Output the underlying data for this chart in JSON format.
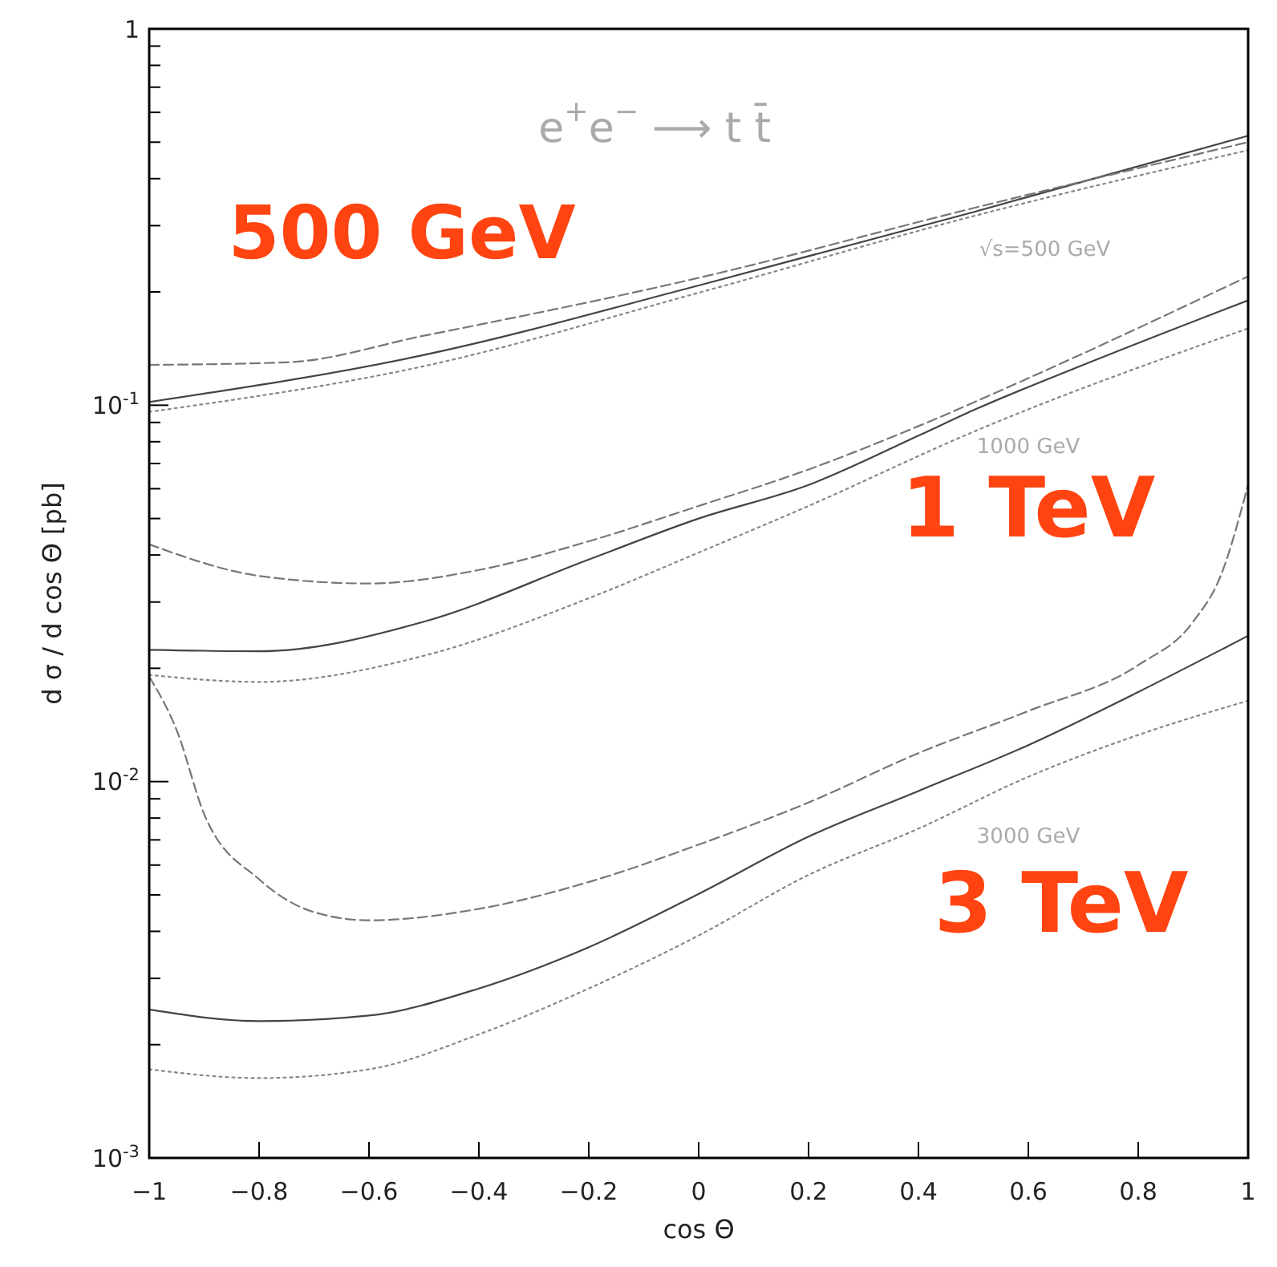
{
  "chart_data": {
    "type": "line",
    "xlabel": "cos Θ",
    "ylabel": "d σ / d cos Θ [pb]",
    "log": "y",
    "xlim": [
      -1,
      1
    ],
    "ylim": [
      0.001,
      1
    ],
    "xticks": [
      {
        "value": -1,
        "label": "−1"
      },
      {
        "value": -0.8,
        "label": "−0.8"
      },
      {
        "value": -0.6,
        "label": "−0.6"
      },
      {
        "value": -0.4,
        "label": "−0.4"
      },
      {
        "value": -0.2,
        "label": "−0.2"
      },
      0,
      0.2,
      0.4,
      0.6,
      0.8,
      1
    ],
    "yticks": [
      {
        "value": 0.001,
        "label": "10$^{-3}$"
      },
      {
        "value": 0.002,
        "label": null
      },
      {
        "value": 0.003,
        "label": null
      },
      {
        "value": 0.004,
        "label": null
      },
      {
        "value": 0.005,
        "label": null
      },
      {
        "value": 0.006,
        "label": null
      },
      {
        "value": 0.007,
        "label": null
      },
      {
        "value": 0.008,
        "label": null
      },
      {
        "value": 0.009,
        "label": null
      },
      {
        "value": 0.01,
        "label": "10$^{-2}$"
      },
      {
        "value": 0.02,
        "label": null
      },
      {
        "value": 0.03,
        "label": null
      },
      {
        "value": 0.04,
        "label": null
      },
      {
        "value": 0.05,
        "label": null
      },
      {
        "value": 0.06,
        "label": null
      },
      {
        "value": 0.07,
        "label": null
      },
      {
        "value": 0.08,
        "label": null
      },
      {
        "value": 0.09,
        "label": null
      },
      {
        "value": 0.1,
        "label": "10$^{-1}$"
      },
      {
        "value": 0.2,
        "label": null
      },
      {
        "value": 0.3,
        "label": null
      },
      {
        "value": 0.4,
        "label": null
      },
      {
        "value": 0.5,
        "label": null
      },
      {
        "value": 0.6,
        "label": null
      },
      {
        "value": 0.7,
        "label": null
      },
      {
        "value": 0.8,
        "label": null
      },
      {
        "value": 0.9,
        "label": null
      },
      1
    ],
    "grid": false,
    "marker": "none",
    "series": [
      {
        "color": "#444444",
        "line_style": "solid",
        "x": [
          -1,
          -0.5,
          0,
          0.5,
          1
        ],
        "values": [
          0.102,
          0.136,
          0.208,
          0.326,
          0.52
        ]
      },
      {
        "color": "#777777",
        "line_style": "dashed",
        "x": [
          -1,
          -0.75,
          -0.5,
          0,
          0.5,
          1
        ],
        "values": [
          0.128,
          0.13,
          0.153,
          0.218,
          0.334,
          0.5
        ]
      },
      {
        "color": "#888888",
        "line_style": "dotted",
        "x": [
          -1,
          -0.5,
          0,
          0.5,
          1
        ],
        "values": [
          0.096,
          0.127,
          0.199,
          0.318,
          0.476
        ]
      },
      {
        "color": "#444444",
        "line_style": "solid",
        "x": [
          -1,
          -0.8,
          -0.5,
          -0.2,
          0,
          0.2,
          0.4,
          0.5,
          0.7,
          1
        ],
        "values": [
          0.0224,
          0.0222,
          0.0266,
          0.0389,
          0.05,
          0.0614,
          0.083,
          0.097,
          0.128,
          0.19
        ]
      },
      {
        "color": "#777777",
        "line_style": "dashed",
        "x": [
          -1,
          -0.8,
          -0.6,
          -0.4,
          -0.2,
          0,
          0.2,
          0.4,
          0.6,
          1
        ],
        "values": [
          0.0427,
          0.0352,
          0.0336,
          0.0365,
          0.0435,
          0.054,
          0.0675,
          0.088,
          0.118,
          0.22
        ]
      },
      {
        "color": "#888888",
        "line_style": "dotted",
        "x": [
          -1,
          -0.8,
          -0.5,
          -0.2,
          0,
          0.2,
          0.5,
          1
        ],
        "values": [
          0.0192,
          0.0184,
          0.0216,
          0.0307,
          0.0406,
          0.054,
          0.085,
          0.16
        ]
      },
      {
        "color": "#444444",
        "line_style": "solid",
        "x": [
          -1,
          -0.8,
          -0.6,
          -0.4,
          -0.2,
          0,
          0.2,
          0.4,
          0.6,
          0.8,
          1
        ],
        "values": [
          0.00248,
          0.00231,
          0.00239,
          0.00282,
          0.00363,
          0.00503,
          0.00714,
          0.00944,
          0.0125,
          0.0173,
          0.0244
        ]
      },
      {
        "color": "#777777",
        "line_style": "dashed",
        "x": [
          -1,
          -0.95,
          -0.9,
          -0.8,
          -0.7,
          -0.6,
          -0.4,
          -0.2,
          0,
          0.2,
          0.4,
          0.6,
          0.8,
          0.9,
          0.95,
          1
        ],
        "values": [
          0.019,
          0.0137,
          0.0082,
          0.0055,
          0.0045,
          0.00428,
          0.00459,
          0.00541,
          0.0068,
          0.0088,
          0.0119,
          0.0154,
          0.0204,
          0.0266,
          0.0352,
          0.0615
        ]
      },
      {
        "color": "#888888",
        "line_style": "dotted",
        "x": [
          -1,
          -0.8,
          -0.6,
          -0.4,
          -0.2,
          0,
          0.2,
          0.4,
          0.6,
          0.8,
          1
        ],
        "values": [
          0.00172,
          0.00163,
          0.00172,
          0.00213,
          0.00282,
          0.0039,
          0.00565,
          0.0075,
          0.0103,
          0.0133,
          0.0164
        ]
      }
    ],
    "annotations": [
      "e$^{+}$e$^{−}$ ⟶ t t̄",
      "√s=500 GeV",
      "1000 GeV",
      "3000 GeV",
      "500 GeV",
      "1 TeV",
      "3 TeV"
    ]
  }
}
